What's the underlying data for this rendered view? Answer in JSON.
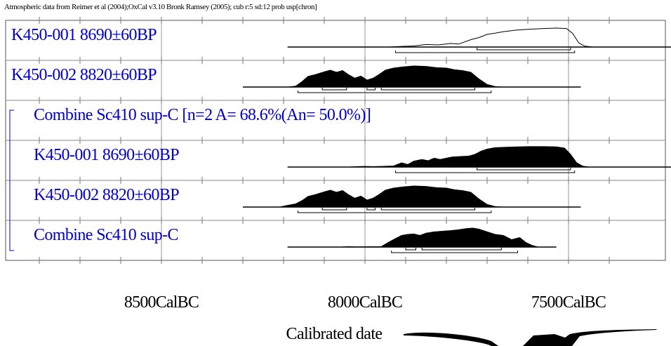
{
  "header": "Atmospheric data from Reimer et al (2004);OxCal v3.10 Bronk Ramsey (2005); cub r:5 sd:12 prob usp[chron]",
  "chart_data": {
    "type": "area",
    "title": "Atmospheric data from Reimer et al (2004);OxCal v3.10 Bronk Ramsey (2005); cub r:5 sd:12 prob usp[chron]",
    "xlabel": "Calibrated date",
    "x_axis": {
      "reversed": true,
      "unit": "CalBC",
      "xlim": [
        8850,
        7350
      ],
      "major_ticks": [
        8500,
        8000,
        7500
      ],
      "minor_step": 100
    },
    "tick_labels": [
      "8500CalBC",
      "8000CalBC",
      "7500CalBC"
    ],
    "grid": true,
    "group_bracket": true,
    "rows": [
      {
        "label": "K450-001  8690±60BP",
        "indent": false,
        "filled": false,
        "color": "#0000cc",
        "baseline_range": [
          8190,
          7150
        ],
        "dist": [
          [
            8190,
            0
          ],
          [
            7940,
            0
          ],
          [
            7910,
            0.03
          ],
          [
            7880,
            0.05
          ],
          [
            7850,
            0.12
          ],
          [
            7820,
            0.1
          ],
          [
            7790,
            0.17
          ],
          [
            7770,
            0.14
          ],
          [
            7740,
            0.35
          ],
          [
            7720,
            0.45
          ],
          [
            7700,
            0.6
          ],
          [
            7680,
            0.66
          ],
          [
            7660,
            0.73
          ],
          [
            7630,
            0.8
          ],
          [
            7600,
            0.84
          ],
          [
            7560,
            0.88
          ],
          [
            7530,
            0.9
          ],
          [
            7505,
            0.88
          ],
          [
            7490,
            0.65
          ],
          [
            7475,
            0.2
          ],
          [
            7460,
            0.04
          ],
          [
            7440,
            0
          ],
          [
            7150,
            0
          ]
        ],
        "ranges_68": [
          [
            7725,
            7495
          ]
        ],
        "ranges_95": [
          [
            7925,
            7485
          ]
        ]
      },
      {
        "label": "K450-002  8820±60BP",
        "indent": false,
        "filled": true,
        "color": "#0000cc",
        "baseline_range": [
          8300,
          7470
        ],
        "dist": [
          [
            8300,
            0
          ],
          [
            8190,
            0
          ],
          [
            8170,
            0.04
          ],
          [
            8155,
            0.25
          ],
          [
            8140,
            0.5
          ],
          [
            8120,
            0.6
          ],
          [
            8100,
            0.72
          ],
          [
            8085,
            0.8
          ],
          [
            8070,
            0.7
          ],
          [
            8055,
            0.78
          ],
          [
            8040,
            0.58
          ],
          [
            8025,
            0.42
          ],
          [
            8010,
            0.52
          ],
          [
            7995,
            0.33
          ],
          [
            7980,
            0.42
          ],
          [
            7965,
            0.6
          ],
          [
            7950,
            0.8
          ],
          [
            7930,
            0.9
          ],
          [
            7905,
            0.96
          ],
          [
            7880,
            1.0
          ],
          [
            7850,
            0.98
          ],
          [
            7825,
            0.92
          ],
          [
            7800,
            0.9
          ],
          [
            7780,
            0.82
          ],
          [
            7760,
            0.78
          ],
          [
            7740,
            0.7
          ],
          [
            7720,
            0.38
          ],
          [
            7700,
            0.12
          ],
          [
            7680,
            0.02
          ],
          [
            7665,
            0
          ],
          [
            7470,
            0
          ]
        ],
        "ranges_68": [
          [
            8105,
            8045
          ],
          [
            7995,
            7975
          ],
          [
            7960,
            7730
          ]
        ],
        "ranges_95": [
          [
            8165,
            7690
          ]
        ]
      },
      {
        "label": "Combine Sc410 sup-C [n=2 A= 68.6%(An= 50.0%)]",
        "indent": true,
        "header_only": true,
        "color": "#0000cc"
      },
      {
        "label": "K450-001  8690±60BP",
        "indent": true,
        "filled": true,
        "color": "#0000cc",
        "baseline_range": [
          8190,
          7150
        ],
        "dist": [
          [
            8190,
            0
          ],
          [
            8040,
            0
          ],
          [
            8020,
            0.02
          ],
          [
            8000,
            0.03
          ],
          [
            7980,
            0.02
          ],
          [
            7960,
            0.03
          ],
          [
            7930,
            0.05
          ],
          [
            7910,
            0.2
          ],
          [
            7895,
            0.12
          ],
          [
            7880,
            0.28
          ],
          [
            7860,
            0.36
          ],
          [
            7845,
            0.3
          ],
          [
            7830,
            0.42
          ],
          [
            7815,
            0.36
          ],
          [
            7800,
            0.42
          ],
          [
            7785,
            0.48
          ],
          [
            7765,
            0.5
          ],
          [
            7745,
            0.52
          ],
          [
            7730,
            0.6
          ],
          [
            7715,
            0.75
          ],
          [
            7700,
            0.85
          ],
          [
            7680,
            0.92
          ],
          [
            7640,
            0.95
          ],
          [
            7600,
            0.97
          ],
          [
            7560,
            0.97
          ],
          [
            7530,
            0.96
          ],
          [
            7510,
            0.9
          ],
          [
            7495,
            0.6
          ],
          [
            7480,
            0.2
          ],
          [
            7465,
            0.04
          ],
          [
            7450,
            0
          ],
          [
            7150,
            0
          ]
        ],
        "ranges_68": [
          [
            7725,
            7495
          ]
        ],
        "ranges_95": [
          [
            7925,
            7485
          ]
        ]
      },
      {
        "label": "K450-002  8820±60BP",
        "indent": true,
        "filled": true,
        "color": "#0000cc",
        "baseline_range": [
          8300,
          7470
        ],
        "dist": [
          [
            8300,
            0
          ],
          [
            8210,
            0
          ],
          [
            8190,
            0.08
          ],
          [
            8170,
            0.15
          ],
          [
            8155,
            0.3
          ],
          [
            8140,
            0.5
          ],
          [
            8120,
            0.6
          ],
          [
            8100,
            0.72
          ],
          [
            8085,
            0.8
          ],
          [
            8070,
            0.7
          ],
          [
            8055,
            0.78
          ],
          [
            8040,
            0.58
          ],
          [
            8025,
            0.42
          ],
          [
            8010,
            0.52
          ],
          [
            7995,
            0.33
          ],
          [
            7980,
            0.42
          ],
          [
            7965,
            0.6
          ],
          [
            7950,
            0.8
          ],
          [
            7930,
            0.9
          ],
          [
            7905,
            0.96
          ],
          [
            7880,
            1.0
          ],
          [
            7850,
            0.98
          ],
          [
            7825,
            0.92
          ],
          [
            7800,
            0.9
          ],
          [
            7780,
            0.82
          ],
          [
            7760,
            0.78
          ],
          [
            7740,
            0.7
          ],
          [
            7720,
            0.38
          ],
          [
            7700,
            0.12
          ],
          [
            7680,
            0.02
          ],
          [
            7665,
            0
          ],
          [
            7470,
            0
          ]
        ],
        "ranges_68": [
          [
            8105,
            8045
          ],
          [
            7995,
            7975
          ],
          [
            7960,
            7730
          ]
        ],
        "ranges_95": [
          [
            8165,
            7690
          ]
        ]
      },
      {
        "label": "Combine Sc410 sup-C",
        "indent": true,
        "filled": true,
        "color": "#0000cc",
        "baseline_range": [
          8190,
          7530
        ],
        "dist": [
          [
            8190,
            0
          ],
          [
            8060,
            0
          ],
          [
            8040,
            0.02
          ],
          [
            8020,
            0.01
          ],
          [
            7960,
            0.02
          ],
          [
            7940,
            0.25
          ],
          [
            7925,
            0.4
          ],
          [
            7910,
            0.55
          ],
          [
            7895,
            0.6
          ],
          [
            7880,
            0.62
          ],
          [
            7865,
            0.55
          ],
          [
            7850,
            0.66
          ],
          [
            7830,
            0.72
          ],
          [
            7810,
            0.75
          ],
          [
            7790,
            0.78
          ],
          [
            7770,
            0.82
          ],
          [
            7750,
            0.88
          ],
          [
            7735,
            0.9
          ],
          [
            7720,
            0.85
          ],
          [
            7700,
            0.72
          ],
          [
            7680,
            0.6
          ],
          [
            7660,
            0.55
          ],
          [
            7640,
            0.35
          ],
          [
            7620,
            0.45
          ],
          [
            7605,
            0.22
          ],
          [
            7590,
            0.08
          ],
          [
            7575,
            0
          ],
          [
            7530,
            0
          ]
        ],
        "ranges_68": [
          [
            7900,
            7875
          ],
          [
            7860,
            7665
          ]
        ],
        "ranges_95": [
          [
            7935,
            7625
          ]
        ]
      }
    ]
  }
}
